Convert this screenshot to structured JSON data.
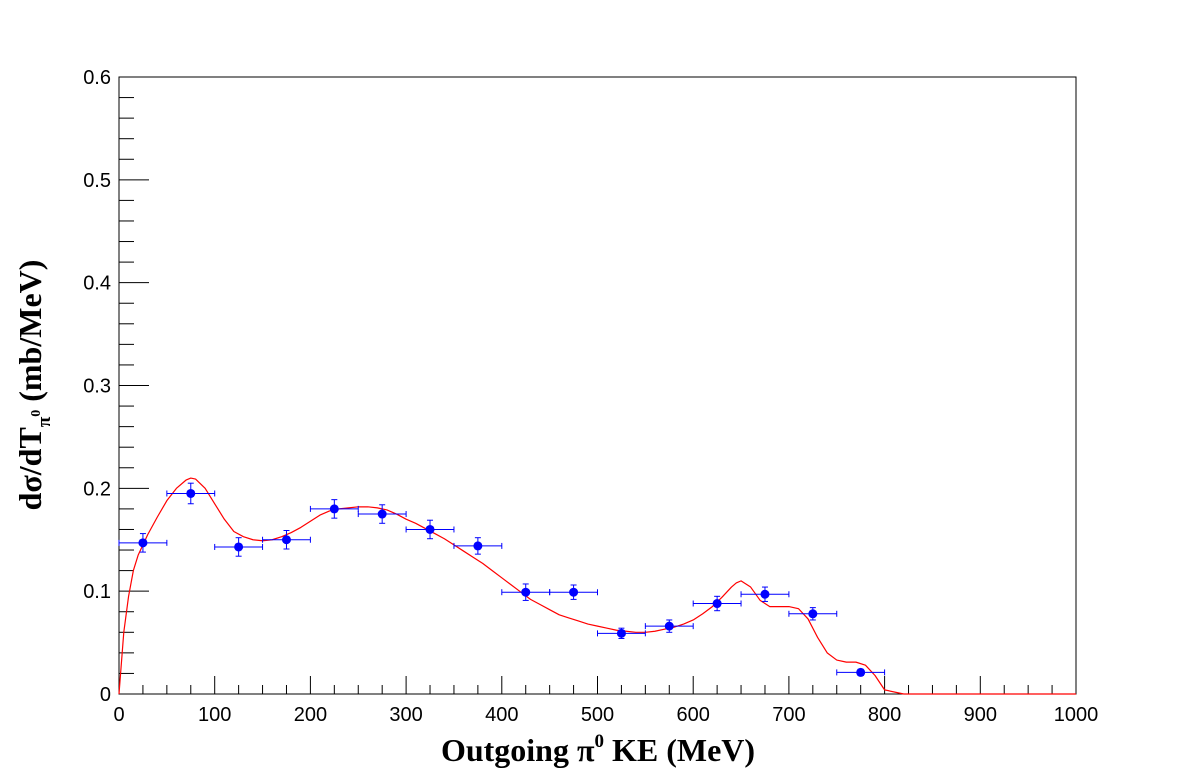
{
  "chart_data": {
    "type": "scatter",
    "title": "",
    "xlabel": {
      "prefix": "Outgoing  π",
      "sup": "0",
      "suffix": " KE (MeV)"
    },
    "ylabel": {
      "prefix": "dσ/dT",
      "sub": "π",
      "subsup": "0",
      "suffix": " (mb/MeV)"
    },
    "xlim": [
      0,
      1000
    ],
    "ylim": [
      0,
      0.6
    ],
    "x_ticks": [
      "0",
      "100",
      "200",
      "300",
      "400",
      "500",
      "600",
      "700",
      "800",
      "900",
      "1000"
    ],
    "y_ticks": [
      "0",
      "0.1",
      "0.2",
      "0.3",
      "0.4",
      "0.5",
      "0.6"
    ],
    "grid": false,
    "legend": "none",
    "series": [
      {
        "kind": "points_with_errors",
        "color": "#0000ff",
        "x": [
          25,
          75,
          125,
          175,
          225,
          275,
          325,
          375,
          425,
          475,
          525,
          575,
          625,
          675,
          725,
          775
        ],
        "x_err": 25,
        "y": [
          0.147,
          0.195,
          0.143,
          0.15,
          0.18,
          0.175,
          0.16,
          0.144,
          0.099,
          0.099,
          0.059,
          0.066,
          0.088,
          0.097,
          0.078,
          0.021
        ],
        "y_err": [
          0.009,
          0.01,
          0.009,
          0.009,
          0.009,
          0.009,
          0.009,
          0.008,
          0.008,
          0.007,
          0.005,
          0.006,
          0.007,
          0.007,
          0.006,
          0.003
        ]
      },
      {
        "kind": "curve",
        "color": "#ff0000",
        "x": [
          0,
          5,
          10,
          15,
          20,
          25,
          30,
          40,
          50,
          60,
          70,
          75,
          80,
          90,
          100,
          110,
          120,
          130,
          140,
          150,
          160,
          170,
          180,
          190,
          200,
          210,
          220,
          230,
          240,
          250,
          260,
          270,
          280,
          290,
          300,
          310,
          320,
          330,
          340,
          350,
          360,
          370,
          380,
          390,
          400,
          410,
          420,
          430,
          440,
          450,
          460,
          470,
          480,
          490,
          500,
          510,
          520,
          530,
          540,
          550,
          560,
          570,
          580,
          590,
          600,
          610,
          620,
          630,
          640,
          645,
          650,
          660,
          670,
          680,
          690,
          700,
          710,
          720,
          730,
          740,
          750,
          760,
          770,
          780,
          790,
          800,
          820,
          850,
          900,
          950,
          1000
        ],
        "y": [
          0.0,
          0.06,
          0.095,
          0.12,
          0.135,
          0.145,
          0.155,
          0.172,
          0.188,
          0.2,
          0.208,
          0.21,
          0.209,
          0.2,
          0.185,
          0.17,
          0.158,
          0.153,
          0.15,
          0.149,
          0.15,
          0.153,
          0.157,
          0.162,
          0.168,
          0.174,
          0.178,
          0.18,
          0.181,
          0.182,
          0.182,
          0.181,
          0.179,
          0.175,
          0.17,
          0.166,
          0.161,
          0.156,
          0.151,
          0.145,
          0.139,
          0.133,
          0.127,
          0.12,
          0.113,
          0.106,
          0.099,
          0.092,
          0.087,
          0.082,
          0.077,
          0.074,
          0.071,
          0.068,
          0.066,
          0.064,
          0.062,
          0.061,
          0.06,
          0.06,
          0.061,
          0.063,
          0.065,
          0.068,
          0.072,
          0.078,
          0.085,
          0.094,
          0.104,
          0.108,
          0.11,
          0.104,
          0.091,
          0.085,
          0.085,
          0.085,
          0.083,
          0.073,
          0.055,
          0.04,
          0.033,
          0.031,
          0.031,
          0.028,
          0.018,
          0.004,
          0.0,
          0.0,
          0.0,
          0.0,
          0.0
        ]
      }
    ]
  }
}
